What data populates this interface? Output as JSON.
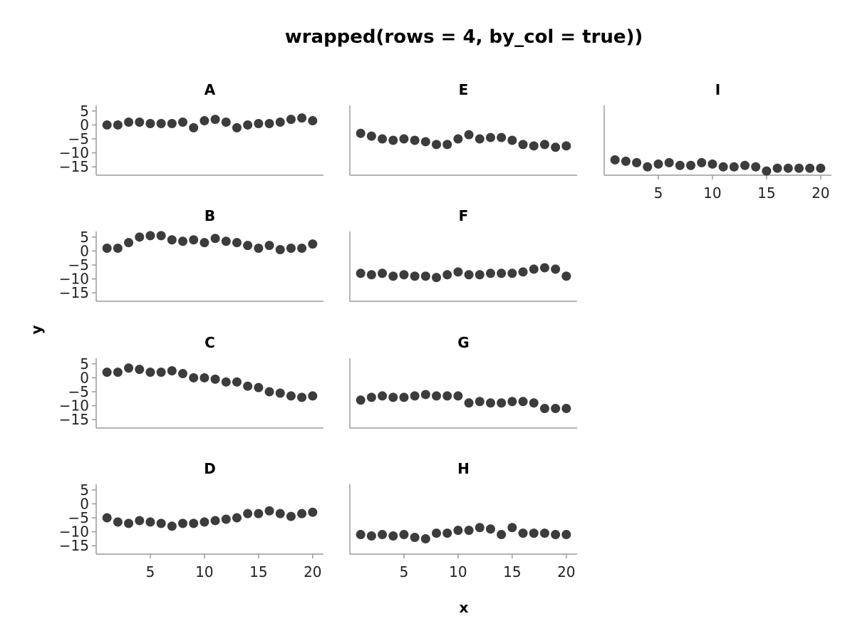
{
  "chart_data": {
    "type": "scatter",
    "title": "wrapped(rows = 4, by_col = true))",
    "xlabel": "x",
    "ylabel": "y",
    "layout": {
      "rows": 4,
      "by_col": true
    },
    "xlim": [
      0,
      21
    ],
    "ylim": [
      -18,
      7
    ],
    "xticks": [
      5,
      10,
      15,
      20
    ],
    "yticks": [
      5,
      0,
      -5,
      -10,
      -15
    ],
    "x": [
      1,
      2,
      3,
      4,
      5,
      6,
      7,
      8,
      9,
      10,
      11,
      12,
      13,
      14,
      15,
      16,
      17,
      18,
      19,
      20
    ],
    "panels": [
      {
        "name": "A",
        "y": [
          0,
          0,
          1,
          1,
          0.5,
          0.5,
          0.5,
          1,
          -1,
          1.5,
          2,
          1,
          -1,
          0,
          0.5,
          0.5,
          1,
          2,
          2.5,
          1.5
        ]
      },
      {
        "name": "B",
        "y": [
          1,
          1,
          3,
          5,
          5.5,
          5.5,
          4,
          3.5,
          4,
          3,
          4.5,
          3.5,
          3,
          2,
          1,
          2,
          0.5,
          1,
          1,
          2.5
        ]
      },
      {
        "name": "C",
        "y": [
          2,
          2,
          3.5,
          3,
          2,
          2,
          2.5,
          1.5,
          0,
          0,
          -0.5,
          -1.5,
          -1.5,
          -3,
          -3.5,
          -5,
          -5.5,
          -6.5,
          -7,
          -6.5
        ]
      },
      {
        "name": "D",
        "y": [
          -5,
          -6.5,
          -7,
          -6,
          -6.5,
          -7,
          -8,
          -7,
          -7,
          -6.5,
          -6,
          -5.5,
          -5,
          -3.5,
          -3.5,
          -2.5,
          -3.5,
          -4.5,
          -3.5,
          -3
        ]
      },
      {
        "name": "E",
        "y": [
          -3,
          -4,
          -5,
          -5.5,
          -5,
          -5.5,
          -6,
          -7,
          -7,
          -5,
          -3.5,
          -5,
          -4.5,
          -4.5,
          -5.5,
          -7,
          -7.5,
          -7,
          -8,
          -7.5
        ]
      },
      {
        "name": "F",
        "y": [
          -8,
          -8.5,
          -8,
          -9,
          -8.5,
          -9,
          -9,
          -9.5,
          -8.5,
          -7.5,
          -8.5,
          -8.5,
          -8,
          -8,
          -8,
          -7.5,
          -6.5,
          -6,
          -6.5,
          -9
        ]
      },
      {
        "name": "G",
        "y": [
          -8,
          -7,
          -6.5,
          -7,
          -7,
          -6.5,
          -6,
          -6.5,
          -6.5,
          -6.5,
          -9,
          -8.5,
          -9,
          -9,
          -8.5,
          -8.5,
          -9,
          -11,
          -11,
          -11
        ]
      },
      {
        "name": "H",
        "y": [
          -11,
          -11.5,
          -11,
          -11.5,
          -11,
          -12,
          -12.5,
          -10.5,
          -10.5,
          -9.5,
          -9.5,
          -8.5,
          -9,
          -11,
          -8.5,
          -10.5,
          -10.5,
          -10.5,
          -11,
          -11
        ]
      },
      {
        "name": "I",
        "y": [
          -12.5,
          -13,
          -13.5,
          -15,
          -14,
          -13.5,
          -14.5,
          -14.5,
          -13.5,
          -14,
          -15,
          -15,
          -14.5,
          -15,
          -16.5,
          -15.5,
          -15.5,
          -15.5,
          -15.5,
          -15.5
        ]
      }
    ]
  }
}
